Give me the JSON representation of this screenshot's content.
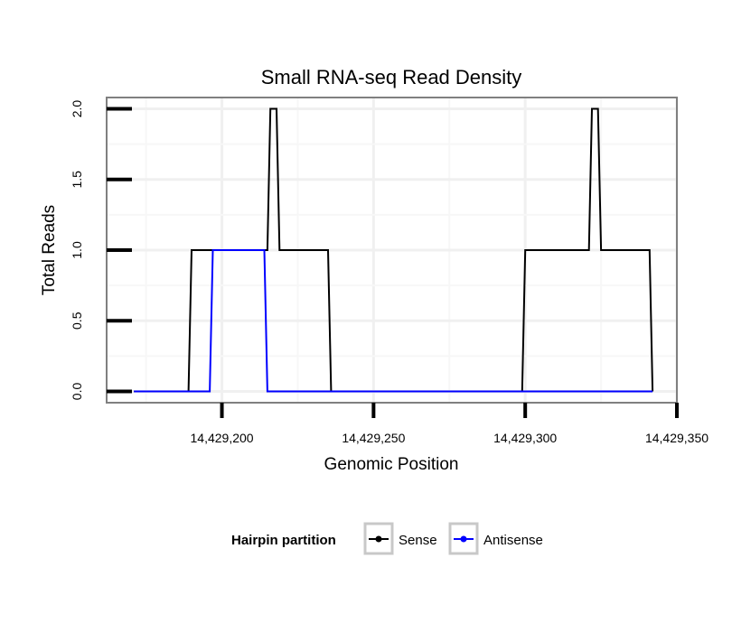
{
  "chart_data": {
    "type": "line",
    "title": "Small RNA-seq Read Density",
    "xlabel": "Genomic Position",
    "ylabel": "Total Reads",
    "xlim": [
      14429162,
      14429350
    ],
    "ylim": [
      -0.08,
      2.08
    ],
    "grid": true,
    "x_ticks": [
      {
        "value": 14429200,
        "label": "14,429,200"
      },
      {
        "value": 14429250,
        "label": "14,429,250"
      },
      {
        "value": 14429300,
        "label": "14,429,300"
      },
      {
        "value": 14429350,
        "label": "14,429,350"
      }
    ],
    "y_ticks": [
      {
        "value": 0,
        "label": "0.0"
      },
      {
        "value": 0.5,
        "label": "0.5"
      },
      {
        "value": 1,
        "label": "1.0"
      },
      {
        "value": 1.5,
        "label": "1.5"
      },
      {
        "value": 2,
        "label": "2.0"
      }
    ],
    "legend": {
      "title": "Hairpin partition",
      "placement": "bottom"
    },
    "series": [
      {
        "name": "Sense",
        "color": "#000000",
        "x": [
          14429171,
          14429189,
          14429190,
          14429215,
          14429216,
          14429218,
          14429219,
          14429235,
          14429236,
          14429299,
          14429300,
          14429321,
          14429322,
          14429324,
          14429325,
          14429341,
          14429342
        ],
        "y": [
          0,
          0,
          1,
          1,
          2,
          2,
          1,
          1,
          0,
          0,
          1,
          1,
          2,
          2,
          1,
          1,
          0
        ]
      },
      {
        "name": "Antisense",
        "color": "#0000ff",
        "x": [
          14429171,
          14429196,
          14429197,
          14429214,
          14429215,
          14429342
        ],
        "y": [
          0,
          0,
          1,
          1,
          0,
          0
        ]
      }
    ]
  }
}
